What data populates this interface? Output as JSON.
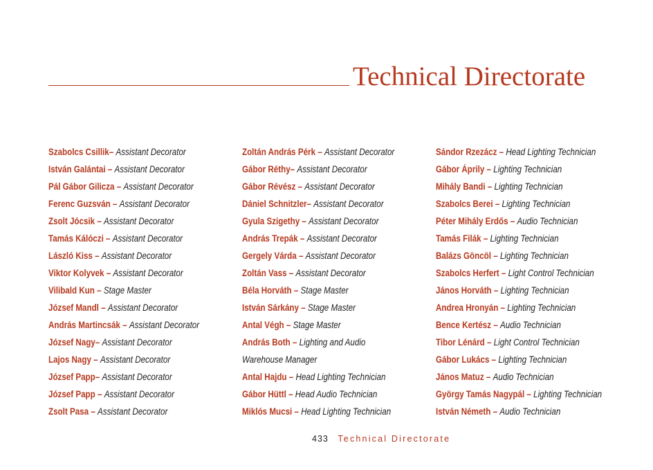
{
  "header": {
    "title": "Technical Directorate"
  },
  "dash": "–",
  "columns": [
    [
      {
        "name": "Szabolcs Csillik",
        "role": "Assistant Decorator",
        "tight": true
      },
      {
        "name": "István Galántai",
        "role": "Assistant Decorator"
      },
      {
        "name": "Pál Gábor Gilicza",
        "role": "Assistant Decorator"
      },
      {
        "name": "Ferenc Guzsván",
        "role": "Assistant Decorator"
      },
      {
        "name": "Zsolt Jócsik",
        "role": "Assistant Decorator"
      },
      {
        "name": "Tamás Kálóczi",
        "role": "Assistant Decorator"
      },
      {
        "name": "László Kiss",
        "role": "Assistant Decorator"
      },
      {
        "name": "Viktor Kolyvek",
        "role": "Assistant Decorator"
      },
      {
        "name": "Vilibald Kun",
        "role": "Stage Master"
      },
      {
        "name": "József Mandl",
        "role": "Assistant Decorator"
      },
      {
        "name": "András Martincsák",
        "role": "Assistant Decorator"
      },
      {
        "name": "József Nagy",
        "role": "Assistant Decorator",
        "tight": true
      },
      {
        "name": "Lajos Nagy",
        "role": "Assistant Decorator"
      },
      {
        "name": "József Papp",
        "role": "Assistant Decorator",
        "tight": true
      },
      {
        "name": "József Papp",
        "role": "Assistant Decorator"
      },
      {
        "name": "Zsolt Pasa",
        "role": "Assistant Decorator"
      }
    ],
    [
      {
        "name": "Zoltán András Pérk",
        "role": "Assistant Decorator"
      },
      {
        "name": "Gábor Réthy",
        "role": "Assistant Decorator",
        "tight": true
      },
      {
        "name": "Gábor Révész",
        "role": "Assistant Decorator"
      },
      {
        "name": "Dániel Schnitzler",
        "role": "Assistant Decorator",
        "tight": true
      },
      {
        "name": "Gyula Szigethy",
        "role": "Assistant Decorator"
      },
      {
        "name": "András Trepák",
        "role": "Assistant Decorator"
      },
      {
        "name": "Gergely Várda",
        "role": "Assistant Decorator"
      },
      {
        "name": "Zoltán Vass",
        "role": "Assistant Decorator"
      },
      {
        "name": "Béla Horváth",
        "role": "Stage Master"
      },
      {
        "name": "István Sárkány",
        "role": "Stage Master"
      },
      {
        "name": "Antal Végh",
        "role": "Stage Master"
      },
      {
        "name": "András Both",
        "role": "Lighting and Audio",
        "role_cont": "Warehouse Manager"
      },
      {
        "name": "Antal Hajdu",
        "role": "Head Lighting Technician"
      },
      {
        "name": "Gábor Hüttl",
        "role": "Head Audio Technician"
      },
      {
        "name": "Miklós Mucsi",
        "role": "Head Lighting Technician"
      }
    ],
    [
      {
        "name": "Sándor Rzezácz",
        "role": "Head Lighting Technician"
      },
      {
        "name": "Gábor Áprily",
        "role": "Lighting Technician"
      },
      {
        "name": "Mihály Bandi",
        "role": "Lighting Technician"
      },
      {
        "name": "Szabolcs Berei",
        "role": "Lighting Technician"
      },
      {
        "name": "Péter Mihály Erdős",
        "role": "Audio Technician"
      },
      {
        "name": "Tamás Filák",
        "role": "Lighting Technician"
      },
      {
        "name": "Balázs Göncöl",
        "role": "Lighting Technician"
      },
      {
        "name": "Szabolcs Herfert",
        "role": "Light Control Technician"
      },
      {
        "name": "János Horváth",
        "role": "Lighting Technician"
      },
      {
        "name": "Andrea Hronyán",
        "role": "Lighting Technician"
      },
      {
        "name": "Bence Kertész",
        "role": "Audio Technician"
      },
      {
        "name": "Tibor Lénárd",
        "role": "Light Control Technician"
      },
      {
        "name": "Gábor Lukács",
        "role": "Lighting Technician"
      },
      {
        "name": "János Matuz",
        "role": "Audio Technician"
      },
      {
        "name": "György Tamás Nagypál",
        "role": "Lighting Technician"
      },
      {
        "name": "István Németh",
        "role": "Audio Technician"
      }
    ]
  ],
  "footer": {
    "page_number": "433",
    "section": "Technical Directorate"
  },
  "colors": {
    "accent": "#b5391f",
    "text": "#222222"
  }
}
